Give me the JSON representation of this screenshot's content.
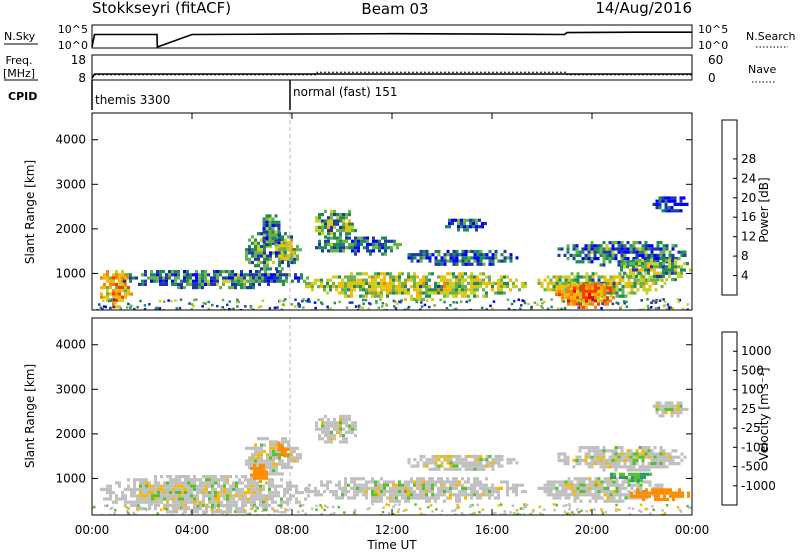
{
  "header": {
    "station": "Stokkseyri (fitACF)",
    "beam": "Beam 03",
    "date": "14/Aug/2016"
  },
  "chart_data": [
    {
      "name": "nsky-nsearch",
      "type": "line",
      "ylabel_left": "N.Sky",
      "ylabel_right": "N.Search",
      "left_ticks": [
        "10^5",
        "10^0"
      ],
      "right_ticks": [
        "10^5",
        "10^0"
      ],
      "x": [
        0,
        0.1,
        0.11,
        2.6,
        2.61,
        4,
        8,
        12,
        16,
        18.9,
        19,
        22,
        24
      ],
      "values": [
        0,
        3.3,
        3.3,
        3.3,
        0,
        3.3,
        3.4,
        3.5,
        3.4,
        3.3,
        3.8,
        3.9,
        3.9
      ]
    },
    {
      "name": "freq-nave",
      "type": "line",
      "ylabel_left": "Freq. [MHz]",
      "ylabel_right": "Nave",
      "left_ticks": [
        "18",
        "8"
      ],
      "right_ticks": [
        "60",
        "0"
      ],
      "freq": {
        "x": [
          0,
          0.1,
          24
        ],
        "values": [
          8,
          10,
          10
        ]
      },
      "nave": {
        "x": [
          0,
          0.1,
          9,
          9.01,
          19,
          19.01,
          24
        ],
        "values": [
          0,
          10,
          10,
          17,
          17,
          10,
          10
        ]
      }
    },
    {
      "name": "cpid",
      "type": "table",
      "label": "CPID",
      "segments": [
        {
          "start": 0,
          "text": "themis 3300"
        },
        {
          "start": 8,
          "text": "normal (fast) 151"
        }
      ]
    },
    {
      "name": "power",
      "type": "heatmap",
      "ylabel": "Slant Range [km]",
      "ylim": [
        180,
        4600
      ],
      "yticks": [
        "1000",
        "2000",
        "3000",
        "4000"
      ],
      "colorbar_label": "Power [dB]",
      "colorbar_ticks": [
        "4",
        "8",
        "12",
        "16",
        "20",
        "24",
        "28"
      ],
      "colorbar_colors": [
        "#0000ff",
        "#1f3aa8",
        "#1f8a5a",
        "#6ab04c",
        "#c8d020",
        "#f8b800",
        "#ff7f00",
        "#ff3c00",
        "#ff0000"
      ],
      "regions": [
        {
          "t0": 0.2,
          "t1": 1.6,
          "r0": 250,
          "r1": 1150,
          "v": 22
        },
        {
          "t0": 1.0,
          "t1": 8.7,
          "r0": 700,
          "r1": 1150,
          "v": 10
        },
        {
          "t0": 6.0,
          "t1": 8.3,
          "r0": 1100,
          "r1": 2000,
          "v": 12
        },
        {
          "t0": 6.7,
          "t1": 7.5,
          "r0": 1600,
          "r1": 2400,
          "v": 10
        },
        {
          "t0": 7.3,
          "t1": 8.1,
          "r0": 1300,
          "r1": 1800,
          "v": 18
        },
        {
          "t0": 8.8,
          "t1": 10.6,
          "r0": 1800,
          "r1": 2500,
          "v": 14
        },
        {
          "t0": 8.8,
          "t1": 12.3,
          "r0": 1400,
          "r1": 1900,
          "v": 10
        },
        {
          "t0": 8.4,
          "t1": 17.4,
          "r0": 450,
          "r1": 1100,
          "v": 16
        },
        {
          "t0": 12.5,
          "t1": 17.0,
          "r0": 1200,
          "r1": 1600,
          "v": 8
        },
        {
          "t0": 14.0,
          "t1": 15.9,
          "r0": 2000,
          "r1": 2300,
          "v": 8
        },
        {
          "t0": 17.7,
          "t1": 22.9,
          "r0": 500,
          "r1": 1100,
          "v": 16
        },
        {
          "t0": 18.4,
          "t1": 20.9,
          "r0": 250,
          "r1": 850,
          "v": 25
        },
        {
          "t0": 18.5,
          "t1": 23.8,
          "r0": 1200,
          "r1": 1800,
          "v": 10
        },
        {
          "t0": 21.0,
          "t1": 24.0,
          "r0": 850,
          "r1": 1400,
          "v": 14
        },
        {
          "t0": 22.3,
          "t1": 23.8,
          "r0": 2400,
          "r1": 2800,
          "v": 6
        }
      ]
    },
    {
      "name": "velocity",
      "type": "heatmap",
      "ylabel": "Slant Range [km]",
      "ylim": [
        180,
        4600
      ],
      "yticks": [
        "1000",
        "2000",
        "3000",
        "4000"
      ],
      "xlabel": "Time UT",
      "xticks": [
        "00:00",
        "04:00",
        "08:00",
        "12:00",
        "16:00",
        "20:00",
        "00:00"
      ],
      "colorbar_label": "Velocity [m s⁻¹]",
      "colorbar_ticks": [
        "1000",
        "500",
        "100",
        "25",
        "-25",
        "-100",
        "-500",
        "-1000"
      ],
      "colorbar_colors": [
        "#1f3aa8",
        "#1f7fb0",
        "#2a9a6a",
        "#58c030",
        "#c0c0c0",
        "#f8b800",
        "#ff8c00",
        "#ff3c00",
        "#ff0000"
      ],
      "regions": [
        {
          "t0": 0.2,
          "t1": 8.7,
          "r0": 250,
          "r1": 1150,
          "v": 0
        },
        {
          "t0": 6.0,
          "t1": 8.3,
          "r0": 1100,
          "r1": 2000,
          "v": 0
        },
        {
          "t0": 6.2,
          "t1": 7.0,
          "r0": 900,
          "r1": 1400,
          "v": -150
        },
        {
          "t0": 7.3,
          "t1": 7.9,
          "r0": 1500,
          "r1": 1900,
          "v": -150
        },
        {
          "t0": 8.8,
          "t1": 10.6,
          "r0": 1800,
          "r1": 2500,
          "v": 0
        },
        {
          "t0": 8.4,
          "t1": 17.4,
          "r0": 500,
          "r1": 1100,
          "v": 0
        },
        {
          "t0": 12.5,
          "t1": 17.0,
          "r0": 1200,
          "r1": 1600,
          "v": 0
        },
        {
          "t0": 17.7,
          "t1": 22.9,
          "r0": 500,
          "r1": 1100,
          "v": 0
        },
        {
          "t0": 18.5,
          "t1": 23.8,
          "r0": 1200,
          "r1": 1800,
          "v": 0
        },
        {
          "t0": 20.6,
          "t1": 22.4,
          "r0": 950,
          "r1": 1200,
          "v": 60
        },
        {
          "t0": 21.4,
          "t1": 23.9,
          "r0": 500,
          "r1": 850,
          "v": -200
        },
        {
          "t0": 22.3,
          "t1": 23.8,
          "r0": 2400,
          "r1": 2800,
          "v": 0
        }
      ]
    }
  ]
}
